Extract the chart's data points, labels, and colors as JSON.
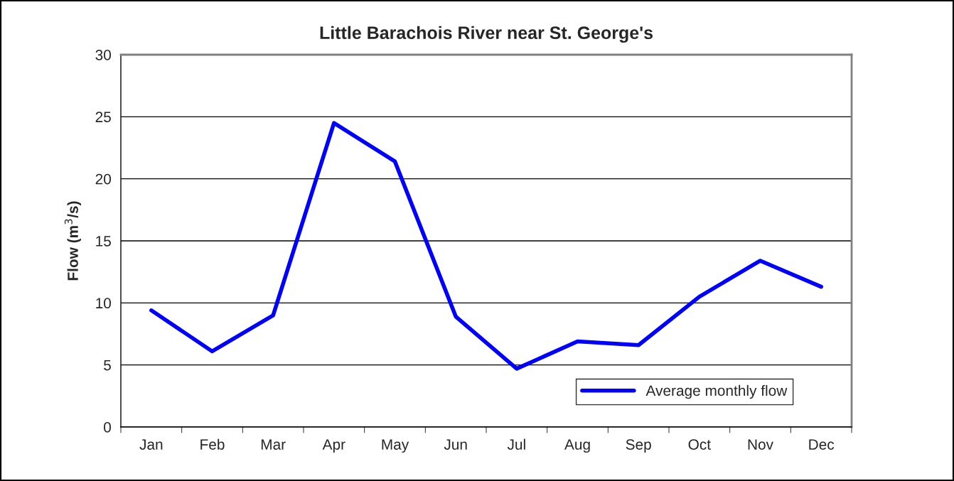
{
  "chart_data": {
    "type": "line",
    "title": "Little Barachois River near St. George's",
    "ylabel": "Flow (m$^{3}$/s)",
    "categories": [
      "Jan",
      "Feb",
      "Mar",
      "Apr",
      "May",
      "Jun",
      "Jul",
      "Aug",
      "Sep",
      "Oct",
      "Nov",
      "Dec"
    ],
    "series": [
      {
        "name": "Average monthly flow",
        "color": "#0000ff",
        "values": [
          9.4,
          6.1,
          9.0,
          24.5,
          21.4,
          8.9,
          4.7,
          6.9,
          6.6,
          10.5,
          13.4,
          11.3
        ]
      }
    ],
    "ylim": [
      0,
      30
    ],
    "yticks": [
      0,
      5,
      10,
      15,
      20,
      25,
      30
    ],
    "grid": "y",
    "legend": "bottom right",
    "marker": "none",
    "line_style": "solid"
  }
}
